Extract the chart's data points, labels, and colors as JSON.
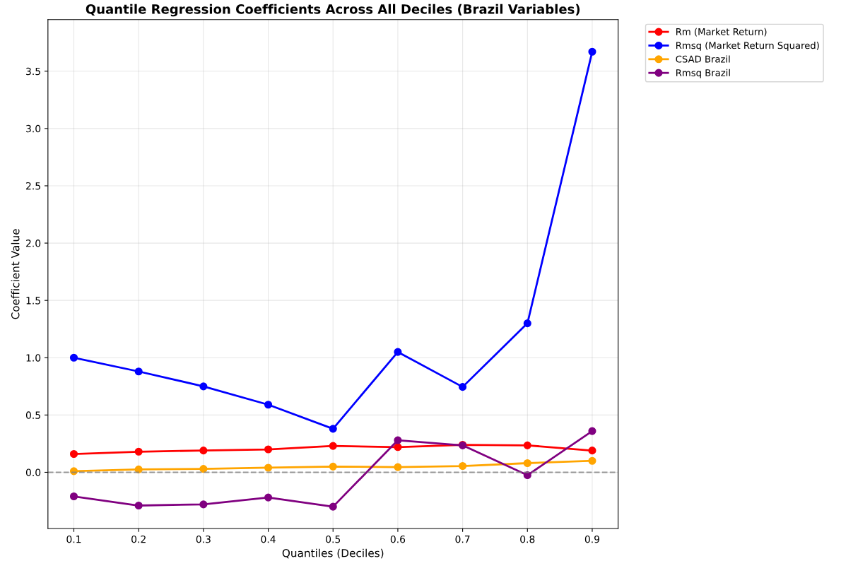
{
  "chart_data": {
    "type": "line",
    "title": "Quantile Regression Coefficients Across All Deciles (Brazil Variables)",
    "xlabel": "Quantiles (Deciles)",
    "ylabel": "Coefficient Value",
    "x": [
      0.1,
      0.2,
      0.3,
      0.4,
      0.5,
      0.6,
      0.7,
      0.8,
      0.9
    ],
    "series": [
      {
        "name": "Rm (Market Return)",
        "color": "#ff0000",
        "values": [
          0.16,
          0.18,
          0.19,
          0.2,
          0.23,
          0.22,
          0.24,
          0.235,
          0.19
        ]
      },
      {
        "name": "Rmsq (Market Return Squared)",
        "color": "#0000ff",
        "values": [
          1.0,
          0.88,
          0.75,
          0.59,
          0.38,
          1.05,
          0.745,
          1.3,
          3.67
        ]
      },
      {
        "name": "CSAD Brazil",
        "color": "#ffa500",
        "values": [
          0.01,
          0.025,
          0.03,
          0.04,
          0.05,
          0.045,
          0.055,
          0.08,
          0.1
        ]
      },
      {
        "name": "Rmsq Brazil",
        "color": "#800080",
        "values": [
          -0.21,
          -0.29,
          -0.28,
          -0.22,
          -0.3,
          0.28,
          0.235,
          -0.025,
          0.36
        ]
      }
    ],
    "xlim": [
      0.06,
      0.94
    ],
    "xticks": [
      0.1,
      0.2,
      0.3,
      0.4,
      0.5,
      0.6,
      0.7,
      0.8,
      0.9
    ],
    "ylim": [
      -0.49,
      3.95
    ],
    "yticks": [
      {
        "value": 0,
        "label": "0.0"
      },
      0.5,
      {
        "value": 1,
        "label": "1.0"
      },
      1.5,
      {
        "value": 2,
        "label": "2.0"
      },
      2.5,
      {
        "value": 3,
        "label": "3.0"
      },
      3.5
    ],
    "ref_lines": [
      {
        "axis": "y",
        "value": 0,
        "label": null,
        "color": "#808080",
        "line_style": "dashed"
      }
    ],
    "grid": true,
    "legend": "top right",
    "marker": "circle",
    "line_style": "solid"
  }
}
